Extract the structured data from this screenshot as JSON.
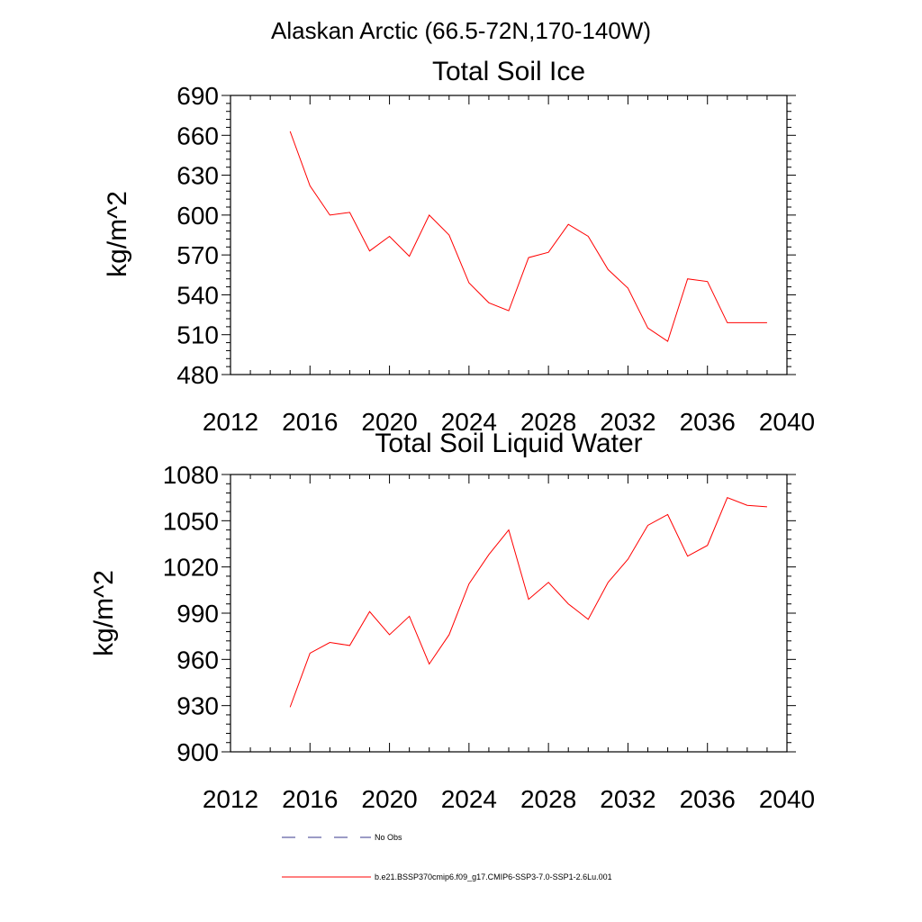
{
  "figure": {
    "title": "Alaskan Arctic (66.5-72N,170-140W)"
  },
  "chart_data": [
    {
      "type": "line",
      "title": "Total Soil Ice",
      "xlabel": "",
      "ylabel": "kg/m^2",
      "xlim": [
        2012,
        2040
      ],
      "ylim": [
        480,
        690
      ],
      "xticks": [
        2012,
        2016,
        2020,
        2024,
        2028,
        2032,
        2036,
        2040
      ],
      "yticks": [
        480,
        510,
        540,
        570,
        600,
        630,
        660,
        690
      ],
      "grid": false,
      "series": [
        {
          "name": "b.e21.BSSP370cmip6.f09_g17.CMIP6-SSP3-7.0-SSP1-2.6Lu.001",
          "color": "#ff0000",
          "x": [
            2015,
            2016,
            2017,
            2018,
            2019,
            2020,
            2021,
            2022,
            2023,
            2024,
            2025,
            2026,
            2027,
            2028,
            2029,
            2030,
            2031,
            2032,
            2033,
            2034,
            2035,
            2036,
            2037,
            2038,
            2039
          ],
          "y": [
            663,
            622,
            600,
            602,
            573,
            584,
            569,
            600,
            585,
            549,
            534,
            528,
            568,
            572,
            593,
            584,
            559,
            545,
            515,
            505,
            552,
            550,
            519,
            519,
            519
          ]
        }
      ]
    },
    {
      "type": "line",
      "title": "Total Soil Liquid Water",
      "xlabel": "",
      "ylabel": "kg/m^2",
      "xlim": [
        2012,
        2040
      ],
      "ylim": [
        900,
        1080
      ],
      "xticks": [
        2012,
        2016,
        2020,
        2024,
        2028,
        2032,
        2036,
        2040
      ],
      "yticks": [
        900,
        930,
        960,
        990,
        1020,
        1050,
        1080
      ],
      "grid": false,
      "series": [
        {
          "name": "b.e21.BSSP370cmip6.f09_g17.CMIP6-SSP3-7.0-SSP1-2.6Lu.001",
          "color": "#ff0000",
          "x": [
            2015,
            2016,
            2017,
            2018,
            2019,
            2020,
            2021,
            2022,
            2023,
            2024,
            2025,
            2026,
            2027,
            2028,
            2029,
            2030,
            2031,
            2032,
            2033,
            2034,
            2035,
            2036,
            2037,
            2038,
            2039
          ],
          "y": [
            929,
            964,
            971,
            969,
            991,
            976,
            988,
            957,
            976,
            1009,
            1028,
            1044,
            999,
            1010,
            996,
            986,
            1010,
            1025,
            1047,
            1054,
            1027,
            1034,
            1065,
            1060,
            1059
          ]
        }
      ]
    }
  ],
  "legend": {
    "placement": "bottom",
    "entries": [
      {
        "label": "No Obs",
        "color": "#3a3a8c",
        "style": "dashed"
      },
      {
        "label": "b.e21.BSSP370cmip6.f09_g17.CMIP6-SSP3-7.0-SSP1-2.6Lu.001",
        "color": "#ff0000",
        "style": "solid"
      }
    ]
  }
}
